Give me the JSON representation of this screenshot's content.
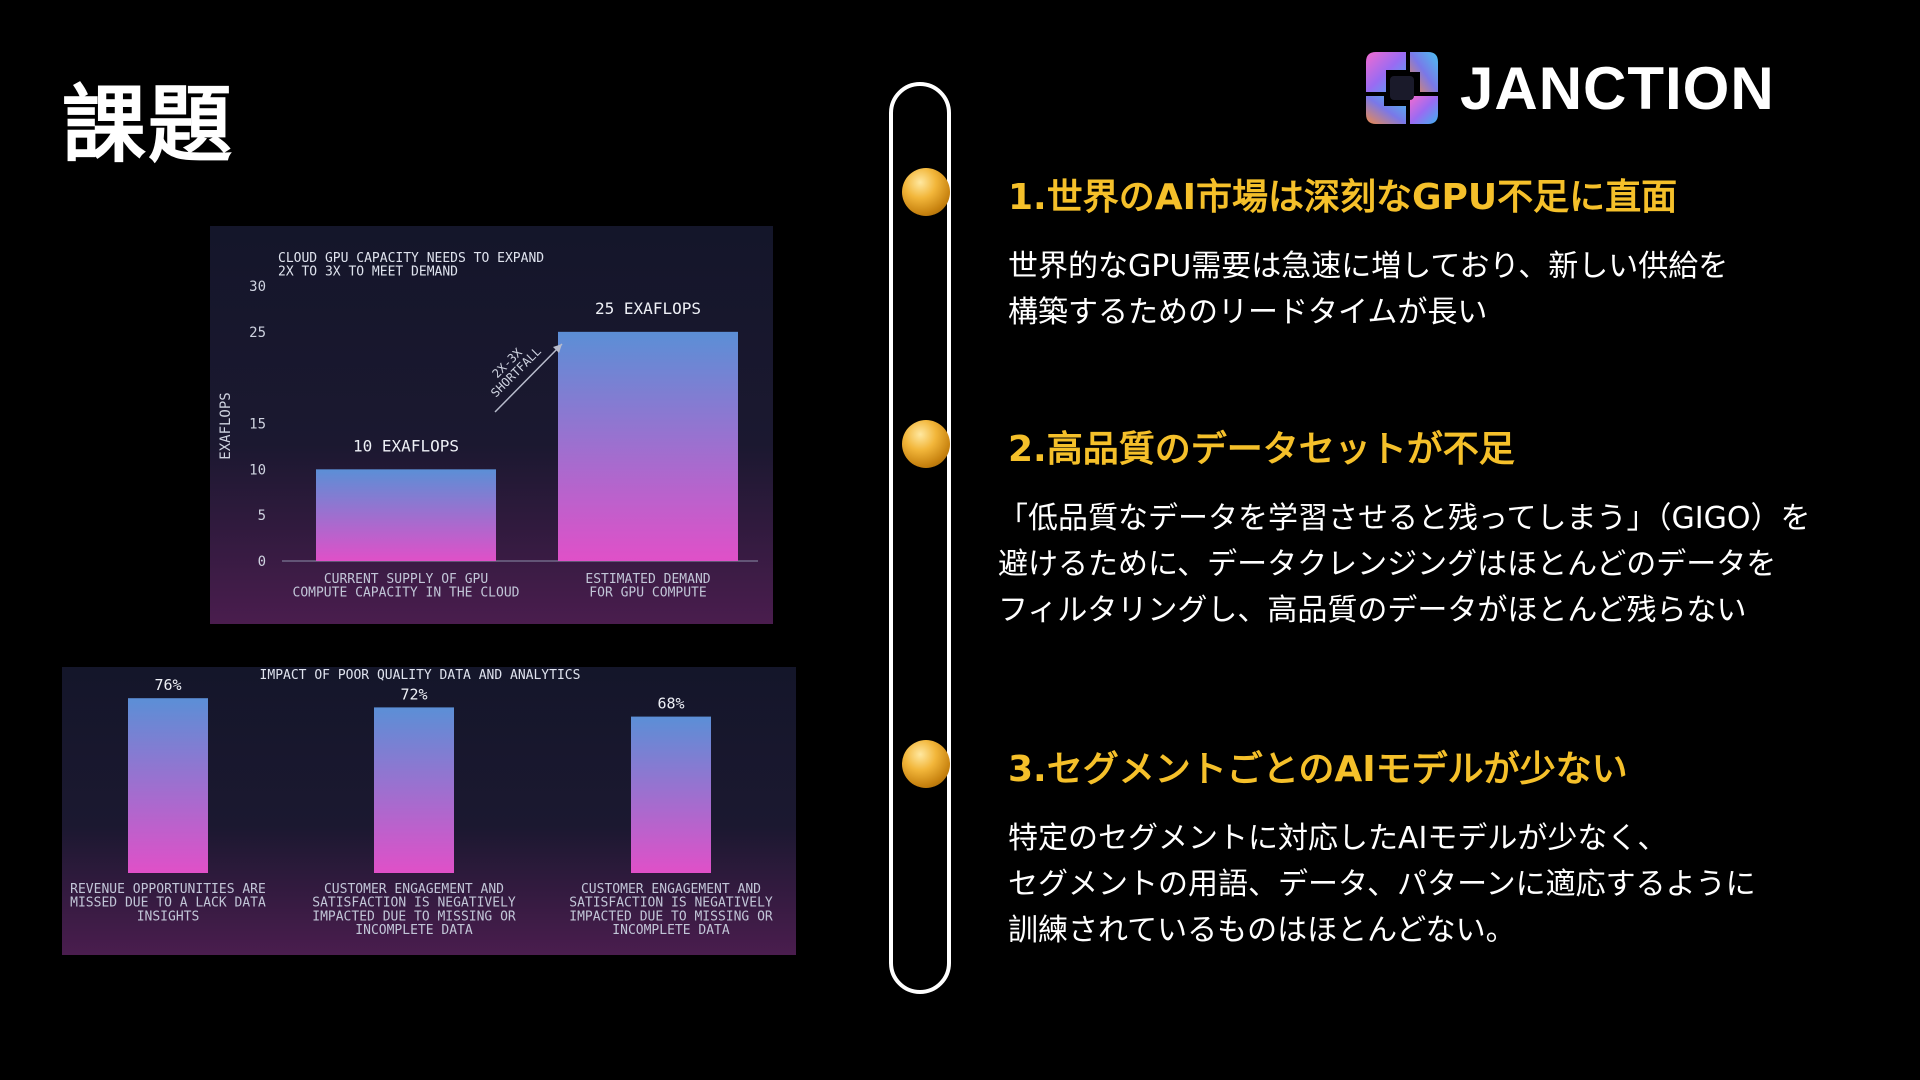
{
  "slide": {
    "title": "課題",
    "logo_text": "JANCTION"
  },
  "sections": [
    {
      "heading": "1.世界のAI市場は深刻なGPU不足に直面",
      "lines": [
        "世界的なGPU需要は急速に増しており、新しい供給を",
        "構築するためのリードタイムが長い"
      ]
    },
    {
      "heading": "2.高品質のデータセットが不足",
      "lines": [
        "「低品質なデータを学習させると残ってしまう」（GIGO）を",
        "避けるために、データクレンジングはほとんどのデータを",
        "フィルタリングし、高品質のデータがほとんど残らない"
      ]
    },
    {
      "heading": "3.セグメントごとのAIモデルが少ない",
      "lines": [
        "特定のセグメントに対応したAIモデルが少なく、",
        "セグメントの用語、データ、パターンに適応するように",
        "訓練されているものはほとんどない。"
      ]
    }
  ],
  "colors": {
    "accent": "#f5c02a",
    "bar_top": "#5b8fd6",
    "bar_bottom": "#e050c8"
  },
  "chart_data": [
    {
      "type": "bar",
      "title": "CLOUD GPU CAPACITY NEEDS TO EXPAND\n2X TO 3X TO MEET DEMAND",
      "ylabel": "EXAFLOPS",
      "ylim": [
        0,
        30
      ],
      "yticks": [
        0,
        5,
        10,
        15,
        25,
        30
      ],
      "ytick_labels": [
        "0",
        "5",
        "10",
        "15",
        "25",
        "30"
      ],
      "categories": [
        "CURRENT SUPPLY OF GPU\nCOMPUTE CAPACITY IN THE CLOUD",
        "ESTIMATED DEMAND\nFOR GPU COMPUTE"
      ],
      "values": [
        10,
        25
      ],
      "data_labels": [
        "10 EXAFLOPS",
        "25 EXAFLOPS"
      ],
      "annotation": "2X-3X\nSHORTFALL"
    },
    {
      "type": "bar",
      "title": "IMPACT OF POOR QUALITY DATA AND ANALYTICS",
      "ylim": [
        0,
        100
      ],
      "categories": [
        "REVENUE OPPORTUNITIES ARE\nMISSED DUE TO A LACK DATA\nINSIGHTS",
        "CUSTOMER ENGAGEMENT AND\nSATISFACTION IS NEGATIVELY\nIMPACTED DUE TO MISSING OR\nINCOMPLETE DATA",
        "CUSTOMER ENGAGEMENT AND\nSATISFACTION IS NEGATIVELY\nIMPACTED DUE TO MISSING OR\nINCOMPLETE DATA"
      ],
      "values": [
        76,
        72,
        68
      ],
      "data_labels": [
        "76%",
        "72%",
        "68%"
      ]
    }
  ]
}
